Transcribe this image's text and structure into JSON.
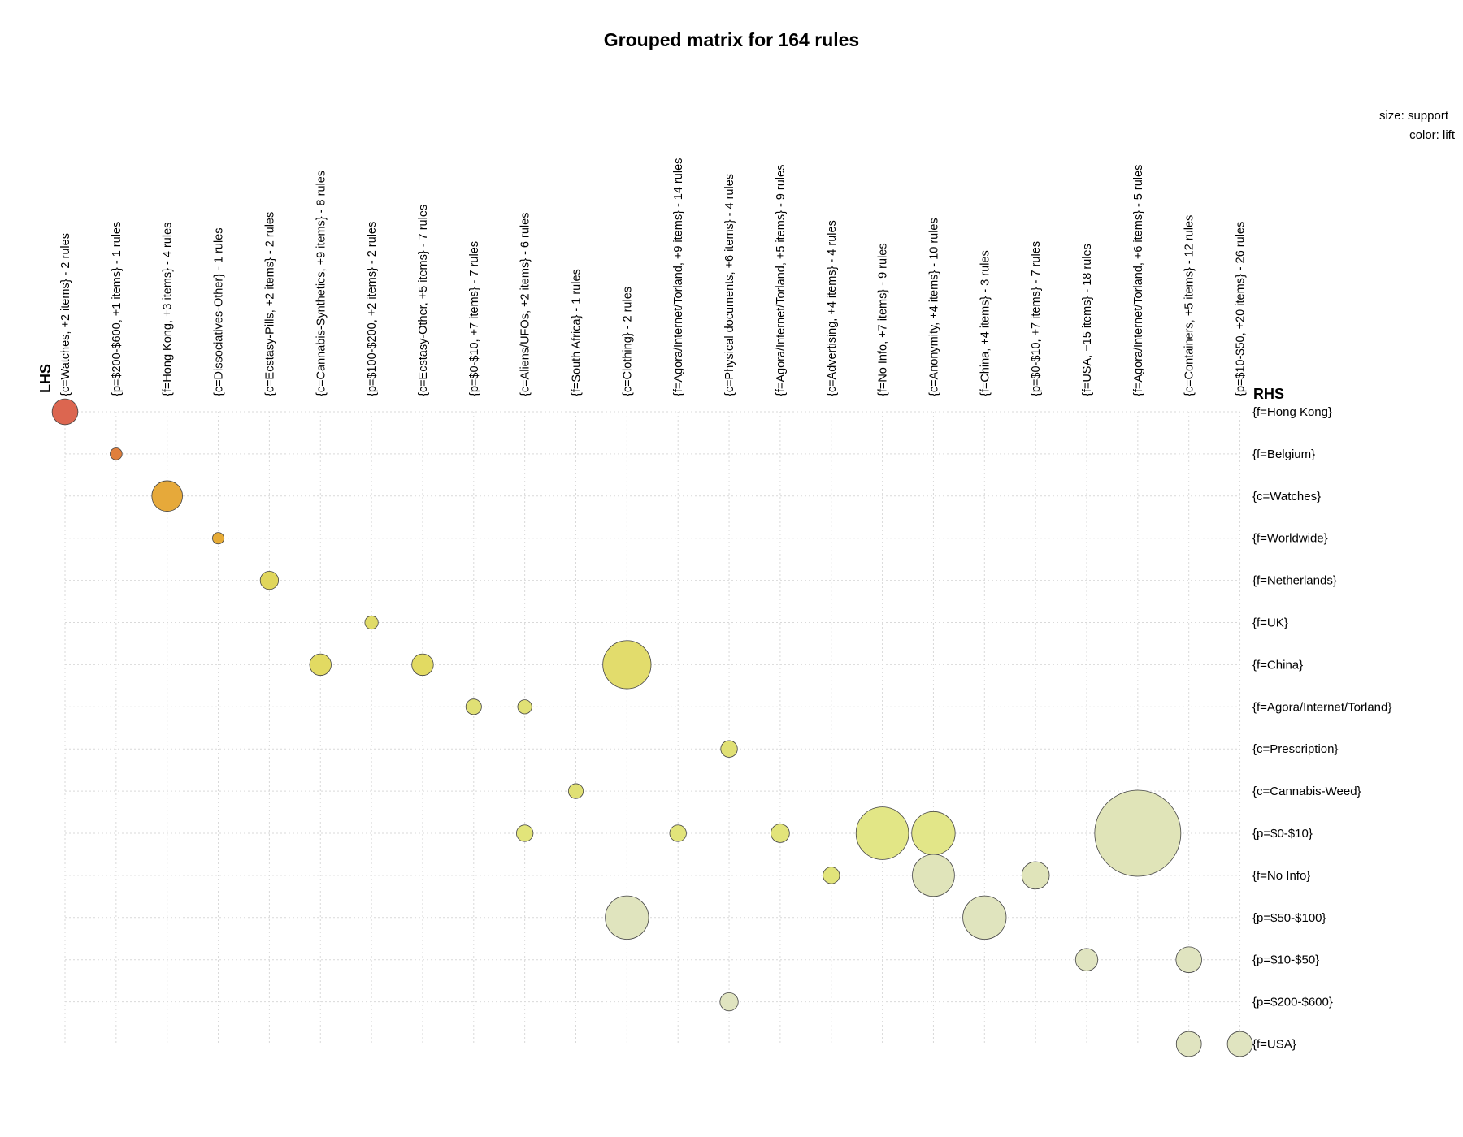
{
  "chart_data": {
    "type": "scatter",
    "title": "Grouped matrix for 164 rules",
    "legend": {
      "size": "size: support",
      "color": "color: lift"
    },
    "lhs_title": "LHS",
    "rhs_title": "RHS",
    "lhs": [
      "{c=Watches, +2 items} - 2 rules",
      "{p=$200-$600, +1 items} - 1 rules",
      "{f=Hong Kong, +3 items} - 4 rules",
      "{c=Dissociatives-Other} - 1 rules",
      "{c=Ecstasy-Pills, +2 items} - 2 rules",
      "{c=Cannabis-Synthetics, +9 items} - 8 rules",
      "{p=$100-$200, +2 items} - 2 rules",
      "{c=Ecstasy-Other, +5 items} - 7 rules",
      "{p=$0-$10, +7 items} - 7 rules",
      "{c=Aliens/UFOs, +2 items} - 6 rules",
      "{f=South Africa} - 1 rules",
      "{c=Clothing} - 2 rules",
      "{f=Agora/Internet/Torland, +9 items} - 14 rules",
      "{c=Physical documents, +6 items} - 4 rules",
      "{f=Agora/Internet/Torland, +5 items} - 9 rules",
      "{c=Advertising, +4 items} - 4 rules",
      "{f=No Info, +7 items} - 9 rules",
      "{c=Anonymity, +4 items} - 10 rules",
      "{f=China, +4 items} - 3 rules",
      "{p=$0-$10, +7 items} - 7 rules",
      "{f=USA, +15 items} - 18 rules",
      "{f=Agora/Internet/Torland, +6 items} - 5 rules",
      "{c=Containers, +5 items} - 12 rules",
      "{p=$10-$50, +20 items} - 26 rules"
    ],
    "rhs": [
      "{f=Hong Kong}",
      "{f=Belgium}",
      "{c=Watches}",
      "{f=Worldwide}",
      "{f=Netherlands}",
      "{f=UK}",
      "{f=China}",
      "{f=Agora/Internet/Torland}",
      "{c=Prescription}",
      "{c=Cannabis-Weed}",
      "{p=$0-$10}",
      "{f=No Info}",
      "{p=$50-$100}",
      "{p=$10-$50}",
      "{p=$200-$600}",
      "{f=USA}"
    ],
    "points": [
      {
        "lhs": 0,
        "rhs": 0,
        "support": 0.006,
        "color": "#dc6650"
      },
      {
        "lhs": 1,
        "rhs": 1,
        "support": 0.0013,
        "color": "#e07f3c"
      },
      {
        "lhs": 2,
        "rhs": 2,
        "support": 0.0085,
        "color": "#e6a93a"
      },
      {
        "lhs": 3,
        "rhs": 3,
        "support": 0.0012,
        "color": "#e6ab36"
      },
      {
        "lhs": 4,
        "rhs": 4,
        "support": 0.003,
        "color": "#e0d65c"
      },
      {
        "lhs": 6,
        "rhs": 5,
        "support": 0.0016,
        "color": "#e0db68"
      },
      {
        "lhs": 5,
        "rhs": 6,
        "support": 0.0042,
        "color": "#e2da62"
      },
      {
        "lhs": 7,
        "rhs": 6,
        "support": 0.0042,
        "color": "#e2da62"
      },
      {
        "lhs": 11,
        "rhs": 6,
        "support": 0.021,
        "color": "#e2dc6c"
      },
      {
        "lhs": 8,
        "rhs": 7,
        "support": 0.0022,
        "color": "#e0e074"
      },
      {
        "lhs": 9,
        "rhs": 7,
        "support": 0.0018,
        "color": "#e0e074"
      },
      {
        "lhs": 13,
        "rhs": 8,
        "support": 0.0025,
        "color": "#e0e074"
      },
      {
        "lhs": 10,
        "rhs": 9,
        "support": 0.002,
        "color": "#e0e074"
      },
      {
        "lhs": 9,
        "rhs": 10,
        "support": 0.0025,
        "color": "#e2e47a"
      },
      {
        "lhs": 12,
        "rhs": 10,
        "support": 0.0025,
        "color": "#e2e47a"
      },
      {
        "lhs": 14,
        "rhs": 10,
        "support": 0.0031,
        "color": "#e2e47a"
      },
      {
        "lhs": 16,
        "rhs": 10,
        "support": 0.025,
        "color": "#e2e686"
      },
      {
        "lhs": 17,
        "rhs": 10,
        "support": 0.017,
        "color": "#e2e688"
      },
      {
        "lhs": 21,
        "rhs": 10,
        "support": 0.067,
        "color": "#e0e4b8"
      },
      {
        "lhs": 15,
        "rhs": 11,
        "support": 0.0025,
        "color": "#e2e47a"
      },
      {
        "lhs": 17,
        "rhs": 11,
        "support": 0.016,
        "color": "#e0e4ba"
      },
      {
        "lhs": 19,
        "rhs": 11,
        "support": 0.0068,
        "color": "#e0e4ba"
      },
      {
        "lhs": 11,
        "rhs": 12,
        "support": 0.017,
        "color": "#e0e4be"
      },
      {
        "lhs": 18,
        "rhs": 12,
        "support": 0.017,
        "color": "#e0e4be"
      },
      {
        "lhs": 20,
        "rhs": 13,
        "support": 0.0045,
        "color": "#e0e4c0"
      },
      {
        "lhs": 22,
        "rhs": 13,
        "support": 0.006,
        "color": "#e0e4c0"
      },
      {
        "lhs": 13,
        "rhs": 14,
        "support": 0.003,
        "color": "#e0e4c0"
      },
      {
        "lhs": 22,
        "rhs": 15,
        "support": 0.0057,
        "color": "#e0e4c0"
      },
      {
        "lhs": 23,
        "rhs": 15,
        "support": 0.0057,
        "color": "#e0e4c0"
      }
    ]
  }
}
